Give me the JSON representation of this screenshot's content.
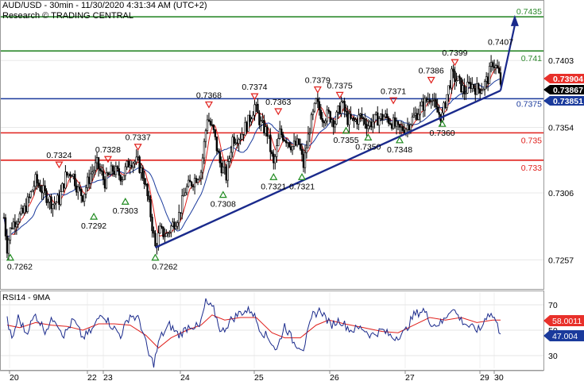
{
  "header": {
    "title": "AUD/USD - 30min - 11/30/2020 4:31:34 AM (UTC+2)",
    "source": "Research © TRADING CENTRAL"
  },
  "rsi_panel": {
    "label": "RSI14 - 9MA",
    "levels": [
      "70",
      "50",
      "30"
    ],
    "tags": [
      {
        "value": "58.0011",
        "color": "#e8302a"
      },
      {
        "value": "47.004",
        "color": "#1a3a9c"
      }
    ]
  },
  "price_axis": {
    "labels": [
      "0.7403",
      "0.7354",
      "0.7306",
      "0.7257"
    ]
  },
  "price_tags": [
    {
      "value": "0.73904",
      "color": "#e8302a",
      "text_color": "#ffffff"
    },
    {
      "value": "0.73867",
      "color": "#000000",
      "text_color": "#ffffff"
    },
    {
      "value": "0.73851",
      "color": "#1a3a9c",
      "text_color": "#ffffff"
    }
  ],
  "level_lines": [
    {
      "label": "0.7435",
      "color": "#2d8a2d"
    },
    {
      "label": "0.741",
      "color": "#2d8a2d"
    },
    {
      "label": "0.7375",
      "color": "#1a3a9c"
    },
    {
      "label": "0.735",
      "color": "#e0201c"
    },
    {
      "label": "0.733",
      "color": "#e0201c"
    }
  ],
  "time_axis": {
    "labels": [
      "20",
      "22",
      "23",
      "24",
      "25",
      "26",
      "27",
      "29",
      "30"
    ]
  },
  "peak_labels": [
    "0.7324",
    "0.7328",
    "0.7337",
    "0.7368",
    "0.7374",
    "0.7363",
    "0.7379",
    "0.7375",
    "0.7371",
    "0.7386",
    "0.7399",
    "0.7407"
  ],
  "trough_labels": [
    "0.7262",
    "0.7292",
    "0.7303",
    "0.7262",
    "0.7308",
    "0.7321",
    "0.7321",
    "0.7355",
    "0.7350",
    "0.7348",
    "0.7360"
  ],
  "chart_data": {
    "type": "candlestick",
    "instrument": "AUD/USD",
    "timeframe": "30min",
    "y_ticks": [
      0.7403,
      0.7354,
      0.7306,
      0.7257
    ],
    "ylim": [
      0.7238,
      0.7445
    ],
    "horizontal_levels": [
      0.7435,
      0.741,
      0.7375,
      0.735,
      0.733
    ],
    "last_price": 0.73867,
    "close_path": [
      {
        "i": 0,
        "v": 0.7288
      },
      {
        "i": 4,
        "v": 0.7266
      },
      {
        "i": 9,
        "v": 0.7282
      },
      {
        "i": 16,
        "v": 0.7287
      },
      {
        "i": 24,
        "v": 0.7291
      },
      {
        "i": 32,
        "v": 0.7302
      },
      {
        "i": 40,
        "v": 0.7315
      },
      {
        "i": 52,
        "v": 0.7305
      },
      {
        "i": 62,
        "v": 0.7298
      },
      {
        "i": 70,
        "v": 0.7301
      },
      {
        "i": 78,
        "v": 0.7318
      },
      {
        "i": 86,
        "v": 0.7322
      },
      {
        "i": 94,
        "v": 0.7308
      },
      {
        "i": 100,
        "v": 0.7304
      },
      {
        "i": 110,
        "v": 0.732
      },
      {
        "i": 118,
        "v": 0.7327
      },
      {
        "i": 128,
        "v": 0.7314
      },
      {
        "i": 138,
        "v": 0.7323
      },
      {
        "i": 150,
        "v": 0.7318
      },
      {
        "i": 160,
        "v": 0.733
      },
      {
        "i": 170,
        "v": 0.7328
      },
      {
        "i": 178,
        "v": 0.7316
      },
      {
        "i": 186,
        "v": 0.729
      },
      {
        "i": 192,
        "v": 0.7266
      },
      {
        "i": 198,
        "v": 0.7278
      },
      {
        "i": 206,
        "v": 0.7275
      },
      {
        "i": 214,
        "v": 0.7283
      },
      {
        "i": 222,
        "v": 0.729
      },
      {
        "i": 230,
        "v": 0.7308
      },
      {
        "i": 240,
        "v": 0.7315
      },
      {
        "i": 250,
        "v": 0.7322
      },
      {
        "i": 258,
        "v": 0.7362
      },
      {
        "i": 266,
        "v": 0.735
      },
      {
        "i": 274,
        "v": 0.7328
      },
      {
        "i": 282,
        "v": 0.7318
      },
      {
        "i": 290,
        "v": 0.7346
      },
      {
        "i": 300,
        "v": 0.7348
      },
      {
        "i": 310,
        "v": 0.7358
      },
      {
        "i": 318,
        "v": 0.737
      },
      {
        "i": 326,
        "v": 0.7356
      },
      {
        "i": 334,
        "v": 0.735
      },
      {
        "i": 342,
        "v": 0.7326
      },
      {
        "i": 350,
        "v": 0.735
      },
      {
        "i": 358,
        "v": 0.7346
      },
      {
        "i": 366,
        "v": 0.734
      },
      {
        "i": 374,
        "v": 0.7342
      },
      {
        "i": 380,
        "v": 0.7326
      },
      {
        "i": 388,
        "v": 0.7354
      },
      {
        "i": 396,
        "v": 0.7372
      },
      {
        "i": 404,
        "v": 0.7362
      },
      {
        "i": 412,
        "v": 0.7363
      },
      {
        "i": 420,
        "v": 0.7358
      },
      {
        "i": 428,
        "v": 0.7372
      },
      {
        "i": 436,
        "v": 0.736
      },
      {
        "i": 444,
        "v": 0.7358
      },
      {
        "i": 452,
        "v": 0.7362
      },
      {
        "i": 462,
        "v": 0.7356
      },
      {
        "i": 472,
        "v": 0.736
      },
      {
        "i": 482,
        "v": 0.7362
      },
      {
        "i": 492,
        "v": 0.7358
      },
      {
        "i": 500,
        "v": 0.7352
      },
      {
        "i": 510,
        "v": 0.7354
      },
      {
        "i": 518,
        "v": 0.736
      },
      {
        "i": 526,
        "v": 0.7366
      },
      {
        "i": 534,
        "v": 0.7372
      },
      {
        "i": 542,
        "v": 0.7378
      },
      {
        "i": 548,
        "v": 0.7366
      },
      {
        "i": 556,
        "v": 0.7362
      },
      {
        "i": 562,
        "v": 0.7378
      },
      {
        "i": 568,
        "v": 0.7392
      },
      {
        "i": 576,
        "v": 0.7388
      },
      {
        "i": 584,
        "v": 0.738
      },
      {
        "i": 592,
        "v": 0.7386
      },
      {
        "i": 600,
        "v": 0.7382
      },
      {
        "i": 608,
        "v": 0.7384
      },
      {
        "i": 614,
        "v": 0.739
      },
      {
        "i": 620,
        "v": 0.7402
      },
      {
        "i": 626,
        "v": 0.7396
      },
      {
        "i": 630,
        "v": 0.73867
      }
    ],
    "trendline": [
      {
        "i": 192,
        "v": 0.7266
      },
      {
        "i": 630,
        "v": 0.7381
      }
    ],
    "target_arrow": [
      {
        "i": 630,
        "v": 0.7381
      },
      {
        "i": 648,
        "v": 0.7434
      }
    ],
    "peaks": [
      {
        "i": 70,
        "v": 0.7324
      },
      {
        "i": 132,
        "v": 0.7328
      },
      {
        "i": 170,
        "v": 0.7337
      },
      {
        "i": 260,
        "v": 0.7368
      },
      {
        "i": 318,
        "v": 0.7374
      },
      {
        "i": 348,
        "v": 0.7363
      },
      {
        "i": 398,
        "v": 0.7379
      },
      {
        "i": 426,
        "v": 0.7375
      },
      {
        "i": 494,
        "v": 0.7371
      },
      {
        "i": 542,
        "v": 0.7386
      },
      {
        "i": 572,
        "v": 0.7399
      },
      {
        "i": 630,
        "v": 0.7407
      }
    ],
    "troughs": [
      {
        "i": 8,
        "v": 0.7262
      },
      {
        "i": 114,
        "v": 0.7292
      },
      {
        "i": 154,
        "v": 0.7303
      },
      {
        "i": 192,
        "v": 0.7262
      },
      {
        "i": 278,
        "v": 0.7308
      },
      {
        "i": 342,
        "v": 0.7321
      },
      {
        "i": 378,
        "v": 0.7321
      },
      {
        "i": 434,
        "v": 0.7355
      },
      {
        "i": 462,
        "v": 0.735
      },
      {
        "i": 502,
        "v": 0.7348
      },
      {
        "i": 556,
        "v": 0.736
      }
    ],
    "rsi": {
      "ylim": [
        20,
        80
      ],
      "levels": [
        70,
        50,
        30
      ],
      "rsi_path": [
        {
          "i": 4,
          "v": 58
        },
        {
          "i": 10,
          "v": 42
        },
        {
          "i": 18,
          "v": 60
        },
        {
          "i": 28,
          "v": 48
        },
        {
          "i": 40,
          "v": 62
        },
        {
          "i": 52,
          "v": 50
        },
        {
          "i": 64,
          "v": 60
        },
        {
          "i": 76,
          "v": 46
        },
        {
          "i": 88,
          "v": 58
        },
        {
          "i": 100,
          "v": 44
        },
        {
          "i": 112,
          "v": 50
        },
        {
          "i": 124,
          "v": 64
        },
        {
          "i": 136,
          "v": 54
        },
        {
          "i": 148,
          "v": 46
        },
        {
          "i": 160,
          "v": 62
        },
        {
          "i": 172,
          "v": 58
        },
        {
          "i": 184,
          "v": 30
        },
        {
          "i": 190,
          "v": 24
        },
        {
          "i": 198,
          "v": 44
        },
        {
          "i": 210,
          "v": 54
        },
        {
          "i": 222,
          "v": 46
        },
        {
          "i": 236,
          "v": 54
        },
        {
          "i": 248,
          "v": 52
        },
        {
          "i": 256,
          "v": 72
        },
        {
          "i": 266,
          "v": 66
        },
        {
          "i": 276,
          "v": 48
        },
        {
          "i": 288,
          "v": 58
        },
        {
          "i": 300,
          "v": 64
        },
        {
          "i": 314,
          "v": 66
        },
        {
          "i": 326,
          "v": 50
        },
        {
          "i": 338,
          "v": 42
        },
        {
          "i": 346,
          "v": 34
        },
        {
          "i": 356,
          "v": 54
        },
        {
          "i": 368,
          "v": 40
        },
        {
          "i": 380,
          "v": 36
        },
        {
          "i": 392,
          "v": 62
        },
        {
          "i": 402,
          "v": 66
        },
        {
          "i": 414,
          "v": 54
        },
        {
          "i": 426,
          "v": 58
        },
        {
          "i": 440,
          "v": 50
        },
        {
          "i": 454,
          "v": 52
        },
        {
          "i": 466,
          "v": 46
        },
        {
          "i": 480,
          "v": 50
        },
        {
          "i": 494,
          "v": 44
        },
        {
          "i": 508,
          "v": 48
        },
        {
          "i": 520,
          "v": 62
        },
        {
          "i": 532,
          "v": 66
        },
        {
          "i": 544,
          "v": 54
        },
        {
          "i": 556,
          "v": 56
        },
        {
          "i": 568,
          "v": 68
        },
        {
          "i": 580,
          "v": 58
        },
        {
          "i": 592,
          "v": 52
        },
        {
          "i": 604,
          "v": 50
        },
        {
          "i": 614,
          "v": 64
        },
        {
          "i": 622,
          "v": 60
        },
        {
          "i": 630,
          "v": 47
        }
      ],
      "ma_path": [
        {
          "i": 4,
          "v": 54
        },
        {
          "i": 20,
          "v": 52
        },
        {
          "i": 40,
          "v": 56
        },
        {
          "i": 60,
          "v": 54
        },
        {
          "i": 80,
          "v": 53
        },
        {
          "i": 100,
          "v": 50
        },
        {
          "i": 120,
          "v": 55
        },
        {
          "i": 140,
          "v": 55
        },
        {
          "i": 160,
          "v": 54
        },
        {
          "i": 180,
          "v": 46
        },
        {
          "i": 196,
          "v": 36
        },
        {
          "i": 212,
          "v": 44
        },
        {
          "i": 232,
          "v": 50
        },
        {
          "i": 250,
          "v": 54
        },
        {
          "i": 264,
          "v": 62
        },
        {
          "i": 280,
          "v": 58
        },
        {
          "i": 300,
          "v": 60
        },
        {
          "i": 320,
          "v": 60
        },
        {
          "i": 340,
          "v": 48
        },
        {
          "i": 356,
          "v": 44
        },
        {
          "i": 376,
          "v": 44
        },
        {
          "i": 396,
          "v": 54
        },
        {
          "i": 412,
          "v": 58
        },
        {
          "i": 432,
          "v": 55
        },
        {
          "i": 456,
          "v": 52
        },
        {
          "i": 480,
          "v": 49
        },
        {
          "i": 500,
          "v": 48
        },
        {
          "i": 520,
          "v": 54
        },
        {
          "i": 540,
          "v": 60
        },
        {
          "i": 560,
          "v": 58
        },
        {
          "i": 580,
          "v": 60
        },
        {
          "i": 600,
          "v": 56
        },
        {
          "i": 620,
          "v": 58
        },
        {
          "i": 630,
          "v": 58
        }
      ]
    }
  }
}
